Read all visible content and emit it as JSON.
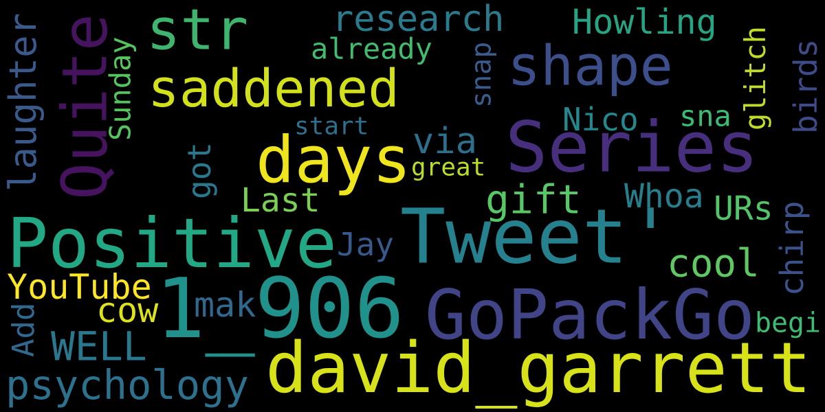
{
  "background": "#000000",
  "words": [
    {
      "id": "str",
      "text": "str",
      "color": "#3eb46f"
    },
    {
      "id": "research",
      "text": "research",
      "color": "#2b7b8e"
    },
    {
      "id": "howling",
      "text": "Howling",
      "color": "#26a585"
    },
    {
      "id": "already",
      "text": "already",
      "color": "#43bb6f"
    },
    {
      "id": "shape",
      "text": "shape",
      "color": "#3d4f8a"
    },
    {
      "id": "saddened",
      "text": "saddened",
      "color": "#d3e11b"
    },
    {
      "id": "quite",
      "text": "Quite",
      "color": "#46145e"
    },
    {
      "id": "laughter",
      "text": "laughter",
      "color": "#3b5a8c"
    },
    {
      "id": "sunday",
      "text": "Sunday",
      "color": "#56c45c"
    },
    {
      "id": "snap",
      "text": "snap",
      "color": "#3a5b8b"
    },
    {
      "id": "glitch",
      "text": "glitch",
      "color": "#bfdc2b"
    },
    {
      "id": "birds",
      "text": "birds",
      "color": "#3f4b89"
    },
    {
      "id": "nico",
      "text": "Nico",
      "color": "#23898e"
    },
    {
      "id": "sna",
      "text": "sna",
      "color": "#3bbc75"
    },
    {
      "id": "start",
      "text": "start",
      "color": "#2f6f8e"
    },
    {
      "id": "days",
      "text": "days",
      "color": "#efe51c"
    },
    {
      "id": "series",
      "text": "Series",
      "color": "#472f7d"
    },
    {
      "id": "via",
      "text": "via",
      "color": "#2d708e"
    },
    {
      "id": "great",
      "text": "great",
      "color": "#b8de29"
    },
    {
      "id": "got",
      "text": "got",
      "color": "#2a788e"
    },
    {
      "id": "gift",
      "text": "gift",
      "color": "#58c765"
    },
    {
      "id": "last",
      "text": "Last",
      "color": "#7ad151"
    },
    {
      "id": "whoa",
      "text": "Whoa",
      "color": "#277f8e"
    },
    {
      "id": "chirp",
      "text": "chirp",
      "color": "#3b528b"
    },
    {
      "id": "urs",
      "text": "URs",
      "color": "#52c569"
    },
    {
      "id": "positive",
      "text": "Positive",
      "color": "#22a884"
    },
    {
      "id": "tweet",
      "text": "Tweet'",
      "color": "#26818e"
    },
    {
      "id": "jay",
      "text": "Jay",
      "color": "#38598c"
    },
    {
      "id": "cool",
      "text": "cool",
      "color": "#5ec962"
    },
    {
      "id": "youtube",
      "text": "YouTube",
      "color": "#fde725"
    },
    {
      "id": "n1906",
      "text": "1_906",
      "color": "#21918c"
    },
    {
      "id": "mak",
      "text": "mak",
      "color": "#31688e"
    },
    {
      "id": "cow",
      "text": "cow",
      "color": "#dde318"
    },
    {
      "id": "gopackgo",
      "text": "GoPackGo",
      "color": "#414487"
    },
    {
      "id": "add",
      "text": "Add",
      "color": "#31688e"
    },
    {
      "id": "well",
      "text": "WELL",
      "color": "#2a788e"
    },
    {
      "id": "begi",
      "text": "begi",
      "color": "#3fbc73"
    },
    {
      "id": "david",
      "text": "david_garrett",
      "color": "#d8e219"
    },
    {
      "id": "psychology",
      "text": "psychology",
      "color": "#2c728e"
    }
  ]
}
